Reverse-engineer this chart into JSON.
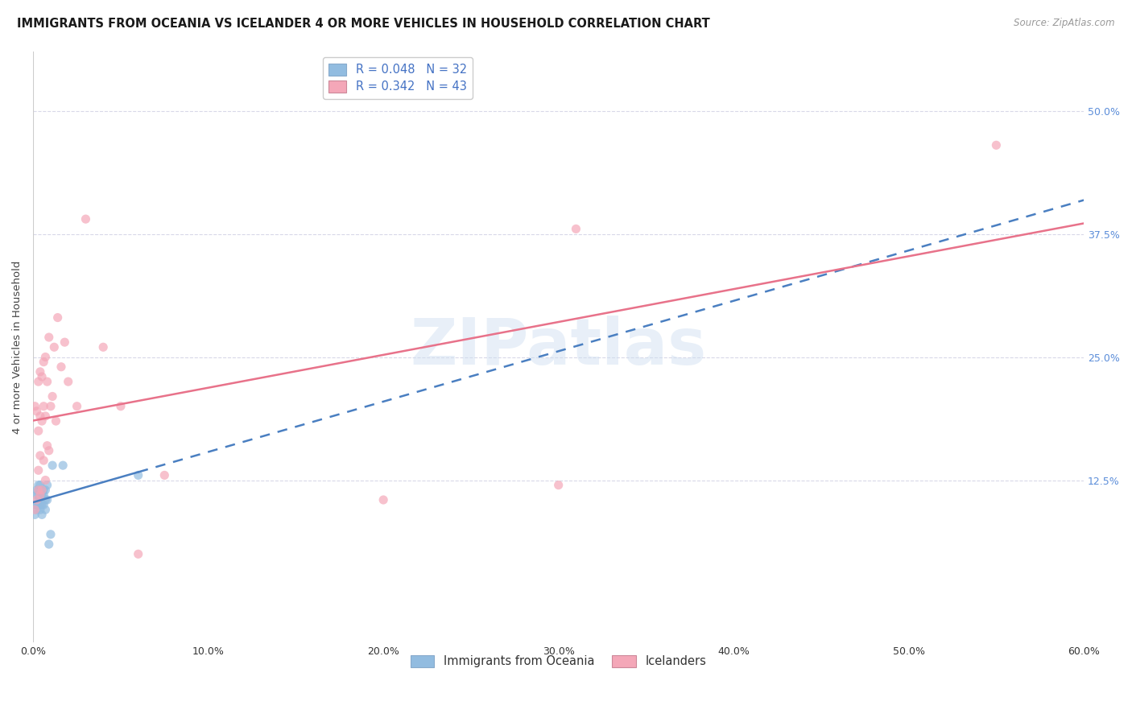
{
  "title": "IMMIGRANTS FROM OCEANIA VS ICELANDER 4 OR MORE VEHICLES IN HOUSEHOLD CORRELATION CHART",
  "source": "Source: ZipAtlas.com",
  "ylabel": "4 or more Vehicles in Household",
  "xlim": [
    0.0,
    0.6
  ],
  "ylim": [
    -0.04,
    0.56
  ],
  "xtick_values": [
    0.0,
    0.1,
    0.2,
    0.3,
    0.4,
    0.5,
    0.6
  ],
  "xtick_labels": [
    "0.0%",
    "10.0%",
    "20.0%",
    "30.0%",
    "40.0%",
    "50.0%",
    "60.0%"
  ],
  "ytick_values": [
    0.125,
    0.25,
    0.375,
    0.5
  ],
  "ytick_labels": [
    "12.5%",
    "25.0%",
    "37.5%",
    "50.0%"
  ],
  "legend_blue_R": "0.048",
  "legend_blue_N": "32",
  "legend_pink_R": "0.342",
  "legend_pink_N": "43",
  "legend_label_blue": "Immigrants from Oceania",
  "legend_label_pink": "Icelanders",
  "blue_color": "#92bce0",
  "pink_color": "#f4a7b8",
  "trendline_blue_solid_color": "#4a7fc1",
  "trendline_blue_dashed_color": "#4a7fc1",
  "trendline_pink_color": "#e8728a",
  "watermark": "ZIPatlas",
  "background_color": "#ffffff",
  "grid_color": "#d8d8e8",
  "blue_x": [
    0.001,
    0.001,
    0.002,
    0.002,
    0.002,
    0.002,
    0.003,
    0.003,
    0.003,
    0.003,
    0.003,
    0.004,
    0.004,
    0.004,
    0.004,
    0.004,
    0.005,
    0.005,
    0.005,
    0.006,
    0.006,
    0.006,
    0.007,
    0.007,
    0.007,
    0.008,
    0.008,
    0.009,
    0.01,
    0.011,
    0.017,
    0.06
  ],
  "blue_y": [
    0.09,
    0.1,
    0.095,
    0.1,
    0.11,
    0.115,
    0.1,
    0.105,
    0.11,
    0.115,
    0.12,
    0.095,
    0.1,
    0.105,
    0.11,
    0.12,
    0.09,
    0.1,
    0.11,
    0.1,
    0.11,
    0.115,
    0.095,
    0.105,
    0.115,
    0.105,
    0.12,
    0.06,
    0.07,
    0.14,
    0.14,
    0.13
  ],
  "pink_x": [
    0.001,
    0.001,
    0.002,
    0.002,
    0.003,
    0.003,
    0.003,
    0.003,
    0.004,
    0.004,
    0.004,
    0.004,
    0.005,
    0.005,
    0.005,
    0.006,
    0.006,
    0.006,
    0.007,
    0.007,
    0.007,
    0.008,
    0.008,
    0.009,
    0.009,
    0.01,
    0.011,
    0.012,
    0.013,
    0.014,
    0.016,
    0.018,
    0.02,
    0.025,
    0.03,
    0.04,
    0.05,
    0.06,
    0.075,
    0.2,
    0.3,
    0.31,
    0.55
  ],
  "pink_y": [
    0.095,
    0.2,
    0.105,
    0.195,
    0.115,
    0.135,
    0.175,
    0.225,
    0.11,
    0.15,
    0.19,
    0.235,
    0.115,
    0.185,
    0.23,
    0.145,
    0.2,
    0.245,
    0.125,
    0.19,
    0.25,
    0.16,
    0.225,
    0.155,
    0.27,
    0.2,
    0.21,
    0.26,
    0.185,
    0.29,
    0.24,
    0.265,
    0.225,
    0.2,
    0.39,
    0.26,
    0.2,
    0.05,
    0.13,
    0.105,
    0.12,
    0.38,
    0.465
  ],
  "title_fontsize": 10.5,
  "axis_label_fontsize": 9.5,
  "tick_fontsize": 9,
  "legend_fontsize": 10.5,
  "marker_size": 65,
  "marker_alpha": 0.7
}
